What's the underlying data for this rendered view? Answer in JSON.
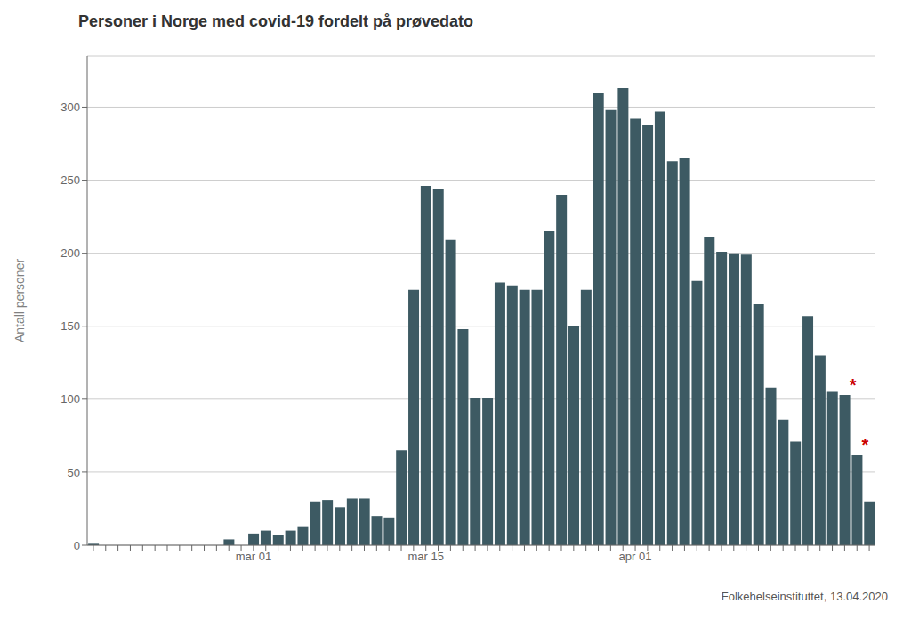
{
  "chart_data": {
    "type": "bar",
    "title": "Personer i Norge med covid-19 fordelt på prøvedato",
    "ylabel": "Antall personer",
    "footer": "Folkehelseinstituttet, 13.04.2020",
    "categories": [
      null,
      null,
      null,
      null,
      null,
      null,
      null,
      null,
      null,
      null,
      null,
      null,
      null,
      "mar 01",
      null,
      null,
      null,
      null,
      null,
      null,
      null,
      null,
      null,
      null,
      null,
      null,
      null,
      "mar 15",
      null,
      null,
      null,
      null,
      null,
      null,
      null,
      null,
      null,
      null,
      null,
      null,
      null,
      null,
      null,
      null,
      "apr 01",
      null,
      null,
      null,
      null,
      null,
      null,
      null,
      null,
      null,
      null,
      null,
      null,
      null,
      null,
      null,
      null,
      null,
      null,
      null
    ],
    "values": [
      1,
      0,
      0,
      0,
      0,
      0,
      0,
      0,
      0,
      0,
      0,
      4,
      0,
      8,
      10,
      7,
      10,
      13,
      30,
      31,
      26,
      32,
      32,
      20,
      19,
      65,
      175,
      246,
      244,
      209,
      148,
      101,
      101,
      180,
      178,
      175,
      175,
      215,
      240,
      150,
      175,
      310,
      298,
      313,
      292,
      288,
      297,
      263,
      265,
      181,
      211,
      201,
      200,
      199,
      165,
      108,
      86,
      71,
      157,
      130,
      105,
      103,
      62,
      30
    ],
    "color": "#3d5a63",
    "ylim": [
      0,
      335
    ],
    "yticks": [
      0,
      50,
      100,
      150,
      200,
      250,
      300
    ],
    "grid": true,
    "annotations": [
      {
        "text": "*",
        "category_index": 61,
        "color": "#cc0000"
      },
      {
        "text": "*",
        "category_index": 62,
        "color": "#cc0000"
      }
    ]
  }
}
